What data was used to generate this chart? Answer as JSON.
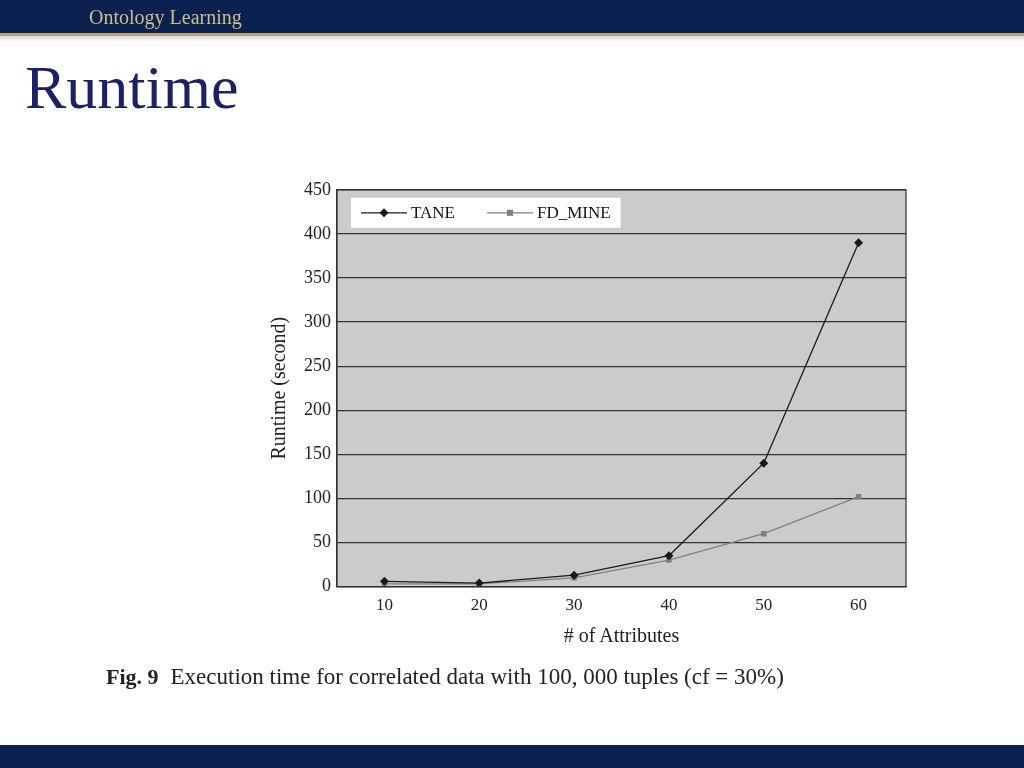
{
  "chart_data": {
    "type": "line",
    "title": "Runtime",
    "xlabel": "# of Attributes",
    "ylabel": "Runtime (second)",
    "categories": [
      "10",
      "20",
      "30",
      "40",
      "50",
      "60"
    ],
    "series": [
      {
        "name": "TANE",
        "color": "#1a1a1a",
        "marker": "diamond",
        "values": [
          6,
          4,
          13,
          35,
          140,
          390
        ]
      },
      {
        "name": "FD_MINE",
        "color": "#808080",
        "marker": "square",
        "values": [
          3,
          3,
          10,
          30,
          60,
          102
        ]
      }
    ],
    "ylim": [
      0,
      450
    ],
    "yticks": [
      0,
      50,
      100,
      150,
      200,
      250,
      300,
      350,
      400,
      450
    ],
    "grid": "y",
    "legend": "top left",
    "annotations": [
      "Ontology Learning",
      "Fig. 9",
      "Execution time for correlated data with 100, 000 tuples (cf = 30%)"
    ]
  }
}
